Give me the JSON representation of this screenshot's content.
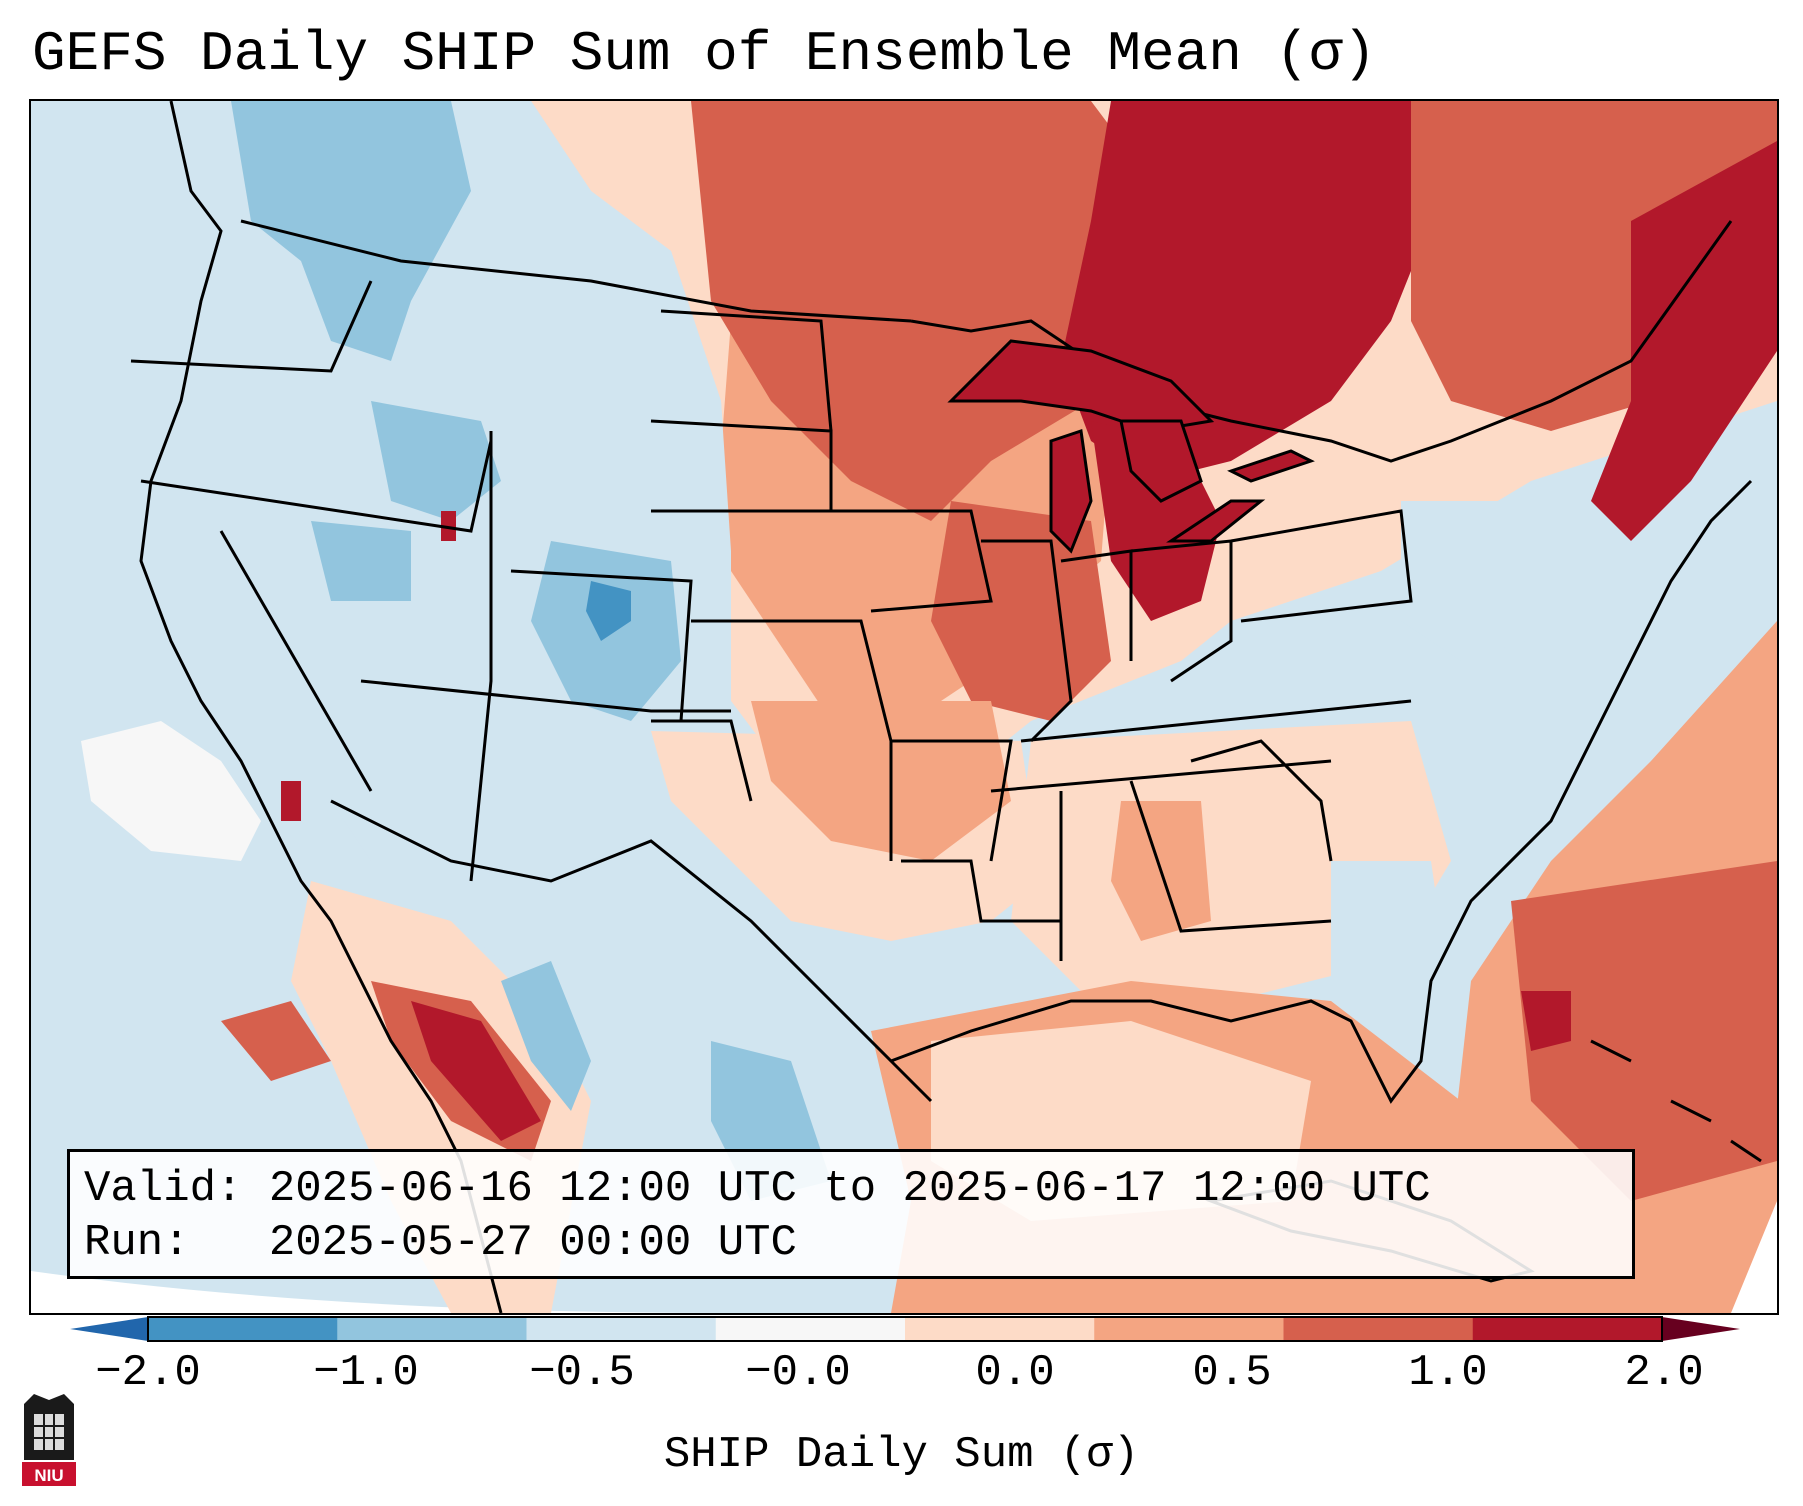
{
  "title": "GEFS Daily SHIP Sum of Ensemble Mean (σ)",
  "info": {
    "valid_label": "Valid:",
    "valid_value": "2025-06-16 12:00 UTC to 2025-06-17 12:00 UTC",
    "run_label": "Run:",
    "run_value": "2025-05-27 00:00 UTC"
  },
  "colorbar": {
    "label": "SHIP Daily Sum (σ)",
    "ticks": [
      "−2.0",
      "−1.0",
      "−0.5",
      "−0.0",
      "0.0",
      "0.5",
      "1.0",
      "2.0"
    ],
    "bin_colors": [
      "#4393c3",
      "#92c5de",
      "#d1e5f0",
      "#f7f7f7",
      "#fddbc7",
      "#f4a582",
      "#d6604d",
      "#b2182b"
    ],
    "under_color": "#2166ac",
    "over_color": "#67001f"
  },
  "palette": {
    "ocean": "#d1e5f0",
    "strong_negative": "#4393c3",
    "negative": "#92c5de",
    "weak_negative": "#d1e5f0",
    "near_zero": "#f7f7f7",
    "weak_positive": "#fddbc7",
    "positive": "#f4a582",
    "strong_positive": "#d6604d",
    "extreme_positive": "#b2182b",
    "boundaries": "#000000"
  },
  "regions": [
    {
      "name": "pacific-northwest",
      "category": "negative"
    },
    {
      "name": "intermountain-west",
      "category": "weak_negative"
    },
    {
      "name": "colorado-rockies",
      "category": "negative"
    },
    {
      "name": "northern-plains",
      "category": "strong_positive"
    },
    {
      "name": "great-lakes",
      "category": "extreme_positive"
    },
    {
      "name": "southern-plains",
      "category": "weak_positive"
    },
    {
      "name": "southeast",
      "category": "weak_positive"
    },
    {
      "name": "mid-atlantic",
      "category": "weak_negative"
    },
    {
      "name": "new-england",
      "category": "extreme_positive"
    },
    {
      "name": "western-atlantic",
      "category": "strong_positive"
    },
    {
      "name": "gulf-of-mexico",
      "category": "positive"
    },
    {
      "name": "sierra-madre-occidental",
      "category": "extreme_positive"
    },
    {
      "name": "eastern-pacific-patch",
      "category": "near_zero"
    }
  ],
  "logo": {
    "text": "NIU",
    "color": "#c8102e"
  }
}
